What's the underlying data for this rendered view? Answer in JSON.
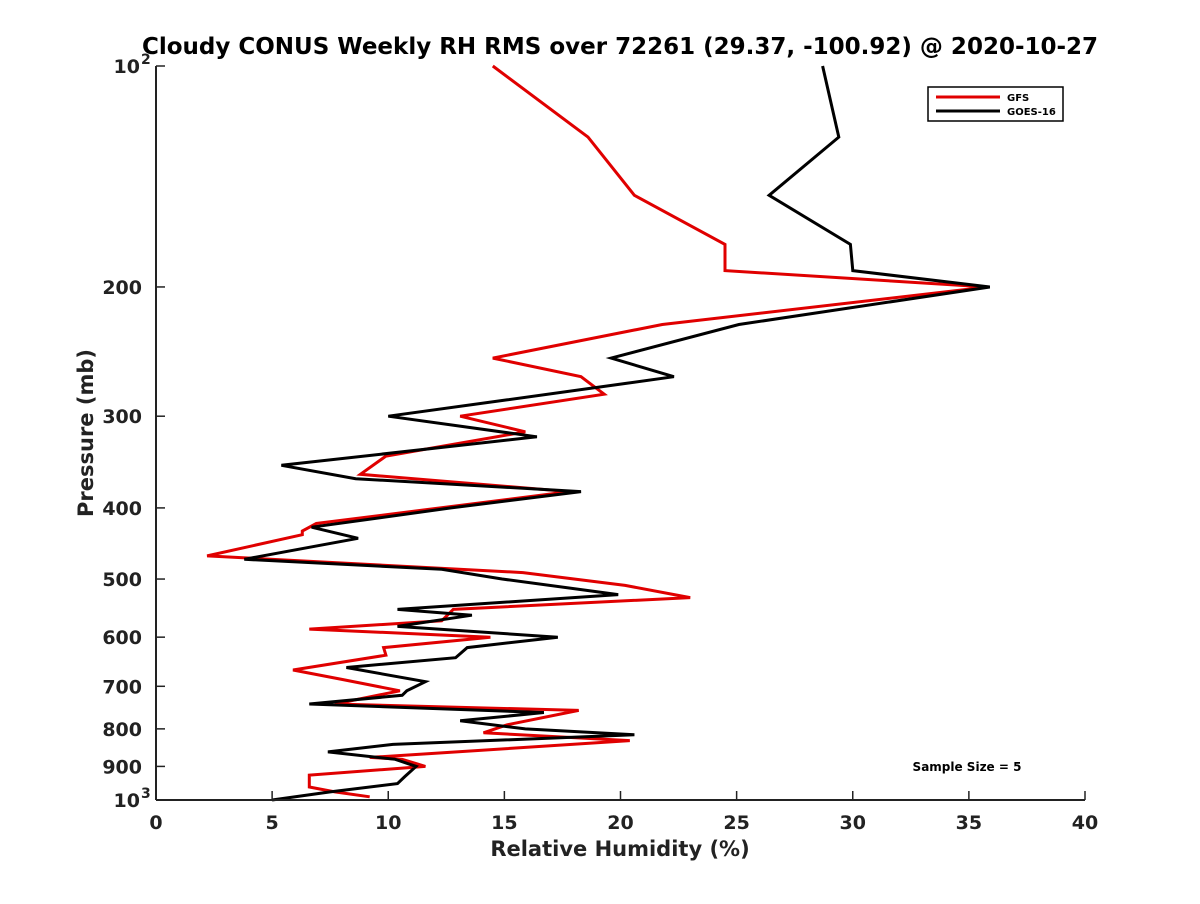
{
  "chart_data": {
    "type": "line",
    "title": "Cloudy CONUS Weekly RH RMS over 72261 (29.37, -100.92) @ 2020-10-27",
    "xlabel": "Relative Humidity (%)",
    "ylabel": "Pressure (mb)",
    "xlim": [
      0,
      40
    ],
    "ylim": [
      100,
      1000
    ],
    "y_scale": "log",
    "y_reversed": true,
    "x_ticks": [
      0,
      5,
      10,
      15,
      20,
      25,
      30,
      35,
      40
    ],
    "y_ticks": [
      {
        "value": 100,
        "label": "10",
        "sup": "2"
      },
      {
        "value": 200,
        "label": "200"
      },
      {
        "value": 300,
        "label": "300"
      },
      {
        "value": 400,
        "label": "400"
      },
      {
        "value": 500,
        "label": "500"
      },
      {
        "value": 600,
        "label": "600"
      },
      {
        "value": 700,
        "label": "700"
      },
      {
        "value": 800,
        "label": "800"
      },
      {
        "value": 900,
        "label": "900"
      },
      {
        "value": 1000,
        "label": "10",
        "sup": "3"
      }
    ],
    "legend_position": "top-right",
    "annotation": "Sample Size = 5",
    "series": [
      {
        "name": "GFS",
        "color": "#e00000",
        "points": [
          [
            14.5,
            100
          ],
          [
            18.6,
            125
          ],
          [
            20.6,
            150
          ],
          [
            24.5,
            175
          ],
          [
            24.5,
            190
          ],
          [
            35.8,
            200
          ],
          [
            21.8,
            225
          ],
          [
            14.5,
            250
          ],
          [
            18.3,
            265
          ],
          [
            19.3,
            280
          ],
          [
            13.1,
            300
          ],
          [
            15.9,
            315
          ],
          [
            9.9,
            340
          ],
          [
            8.8,
            360
          ],
          [
            17.8,
            380
          ],
          [
            6.9,
            420
          ],
          [
            6.3,
            430
          ],
          [
            6.3,
            435
          ],
          [
            2.2,
            465
          ],
          [
            15.8,
            490
          ],
          [
            20.2,
            510
          ],
          [
            23.0,
            530
          ],
          [
            12.8,
            550
          ],
          [
            12.3,
            570
          ],
          [
            6.6,
            585
          ],
          [
            14.4,
            600
          ],
          [
            9.8,
            620
          ],
          [
            9.9,
            635
          ],
          [
            5.9,
            665
          ],
          [
            8.0,
            685
          ],
          [
            10.5,
            710
          ],
          [
            7.7,
            740
          ],
          [
            18.2,
            755
          ],
          [
            15.1,
            790
          ],
          [
            14.1,
            810
          ],
          [
            20.4,
            830
          ],
          [
            11.7,
            865
          ],
          [
            9.2,
            875
          ],
          [
            10.6,
            880
          ],
          [
            11.6,
            900
          ],
          [
            6.6,
            925
          ],
          [
            6.6,
            960
          ],
          [
            7.7,
            975
          ],
          [
            9.2,
            990
          ]
        ]
      },
      {
        "name": "GOES-16",
        "color": "#000000",
        "points": [
          [
            28.7,
            100
          ],
          [
            29.4,
            125
          ],
          [
            26.4,
            150
          ],
          [
            29.9,
            175
          ],
          [
            30.0,
            190
          ],
          [
            35.9,
            200
          ],
          [
            25.1,
            225
          ],
          [
            19.6,
            250
          ],
          [
            22.3,
            265
          ],
          [
            15.1,
            285
          ],
          [
            10.0,
            300
          ],
          [
            16.4,
            320
          ],
          [
            5.4,
            350
          ],
          [
            8.6,
            365
          ],
          [
            18.3,
            380
          ],
          [
            12.7,
            400
          ],
          [
            6.7,
            425
          ],
          [
            8.7,
            440
          ],
          [
            3.8,
            470
          ],
          [
            12.3,
            485
          ],
          [
            14.9,
            500
          ],
          [
            19.9,
            525
          ],
          [
            10.4,
            550
          ],
          [
            13.6,
            560
          ],
          [
            10.4,
            580
          ],
          [
            17.3,
            600
          ],
          [
            13.4,
            620
          ],
          [
            12.9,
            640
          ],
          [
            8.2,
            660
          ],
          [
            11.6,
            690
          ],
          [
            10.8,
            710
          ],
          [
            10.6,
            720
          ],
          [
            6.6,
            740
          ],
          [
            16.7,
            760
          ],
          [
            13.1,
            780
          ],
          [
            15.9,
            800
          ],
          [
            20.6,
            815
          ],
          [
            10.2,
            840
          ],
          [
            7.4,
            860
          ],
          [
            10.3,
            880
          ],
          [
            11.2,
            900
          ],
          [
            10.7,
            930
          ],
          [
            10.4,
            950
          ],
          [
            7.5,
            975
          ],
          [
            5.0,
            1000
          ]
        ]
      }
    ]
  }
}
